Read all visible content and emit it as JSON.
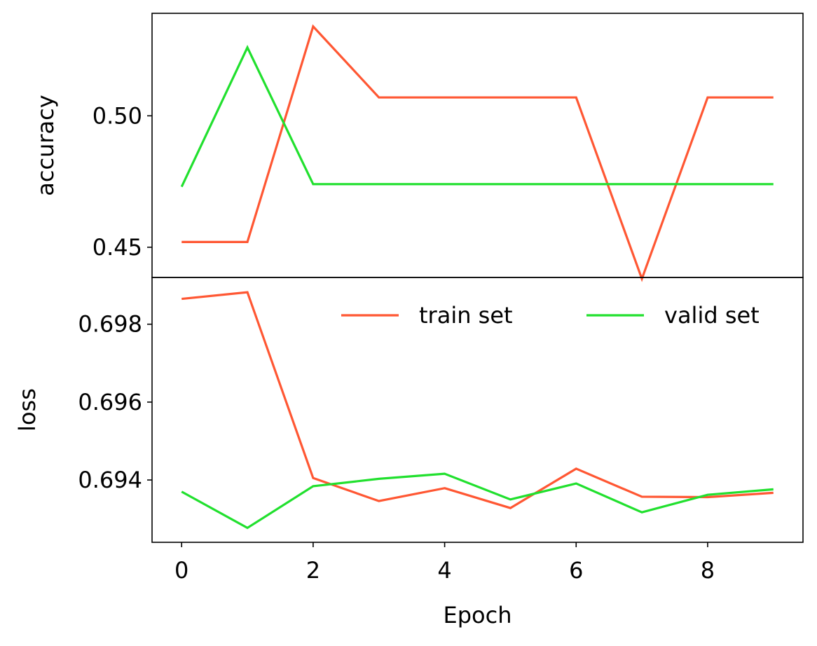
{
  "chart_data": [
    {
      "type": "line",
      "panel": "top",
      "ylabel": "accuracy",
      "x": [
        0,
        1,
        2,
        3,
        4,
        5,
        6,
        7,
        8,
        9
      ],
      "xlim": [
        -0.45,
        9.45
      ],
      "ylim": [
        0.4385,
        0.539
      ],
      "yticks": [
        0.45,
        0.5
      ],
      "ytick_labels": [
        "0.45",
        "0.50"
      ],
      "series": [
        {
          "name": "train set",
          "color": "#ff5733",
          "values": [
            0.452,
            0.452,
            0.534,
            0.507,
            0.507,
            0.507,
            0.507,
            0.438,
            0.507,
            0.507
          ]
        },
        {
          "name": "valid set",
          "color": "#21e02e",
          "values": [
            0.473,
            0.526,
            0.474,
            0.474,
            0.474,
            0.474,
            0.474,
            0.474,
            0.474,
            0.474
          ]
        }
      ]
    },
    {
      "type": "line",
      "panel": "bottom",
      "ylabel": "loss",
      "xlabel": "Epoch",
      "x": [
        0,
        1,
        2,
        3,
        4,
        5,
        6,
        7,
        8,
        9
      ],
      "xlim": [
        -0.45,
        9.45
      ],
      "xticks": [
        0,
        2,
        4,
        6,
        8
      ],
      "xtick_labels": [
        "0",
        "2",
        "4",
        "6",
        "8"
      ],
      "ylim": [
        0.6924,
        0.6992
      ],
      "yticks": [
        0.694,
        0.696,
        0.698
      ],
      "ytick_labels": [
        "0.694",
        "0.696",
        "0.698"
      ],
      "legend": {
        "position": "upper right",
        "ncol": 2,
        "frame": false
      },
      "series": [
        {
          "name": "train set",
          "color": "#ff5733",
          "values": [
            0.69865,
            0.69882,
            0.69405,
            0.69346,
            0.69379,
            0.69328,
            0.69429,
            0.69357,
            0.69356,
            0.69367
          ]
        },
        {
          "name": "valid set",
          "color": "#21e02e",
          "values": [
            0.6937,
            0.69277,
            0.69384,
            0.69403,
            0.69416,
            0.6935,
            0.69391,
            0.69317,
            0.69362,
            0.69376
          ]
        }
      ]
    }
  ]
}
